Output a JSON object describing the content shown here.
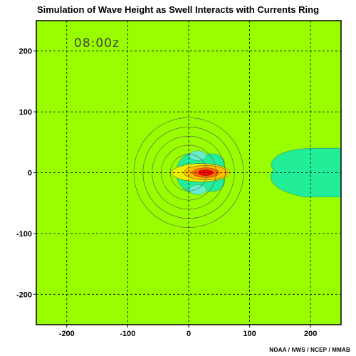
{
  "chart_data": {
    "type": "heatmap",
    "title": "Simulation of Wave Height as Swell Interacts with Currents Ring",
    "time_label": "08:00z",
    "credit": "NOAA / NWS / NCEP / MMAB",
    "xlim": [
      -250,
      250
    ],
    "ylim": [
      -250,
      250
    ],
    "xticks": [
      -200,
      -100,
      0,
      100,
      200
    ],
    "yticks": [
      200,
      100,
      0,
      -100,
      -200
    ],
    "x_tick_labels": [
      "-200",
      "-100",
      "0",
      "100",
      "200"
    ],
    "y_tick_labels": [
      "200",
      "100",
      "0",
      "-100",
      "-200"
    ],
    "grid": true,
    "grid_style": "dashed",
    "background_color": "#99ff00",
    "colors": {
      "background": "#99ff00",
      "cyan": "#22ee99",
      "light_cyan": "#66eecc",
      "yellow": "#eeee00",
      "orange": "#ffbb00",
      "red_orange": "#ff6600",
      "red": "#ff0000"
    },
    "current_ring": {
      "center": [
        0,
        0
      ],
      "radii_km": [
        30,
        45,
        60,
        75,
        90
      ]
    },
    "wave_height_features": [
      {
        "name": "central maximum",
        "center": [
          28,
          0
        ],
        "level": "red"
      },
      {
        "name": "upper side band",
        "center": [
          15,
          28
        ],
        "level": "cyan"
      },
      {
        "name": "lower side band",
        "center": [
          15,
          -28
        ],
        "level": "cyan"
      },
      {
        "name": "downstream region",
        "x_range": [
          135,
          250
        ],
        "y_range": [
          -40,
          40
        ],
        "level": "cyan"
      }
    ]
  }
}
